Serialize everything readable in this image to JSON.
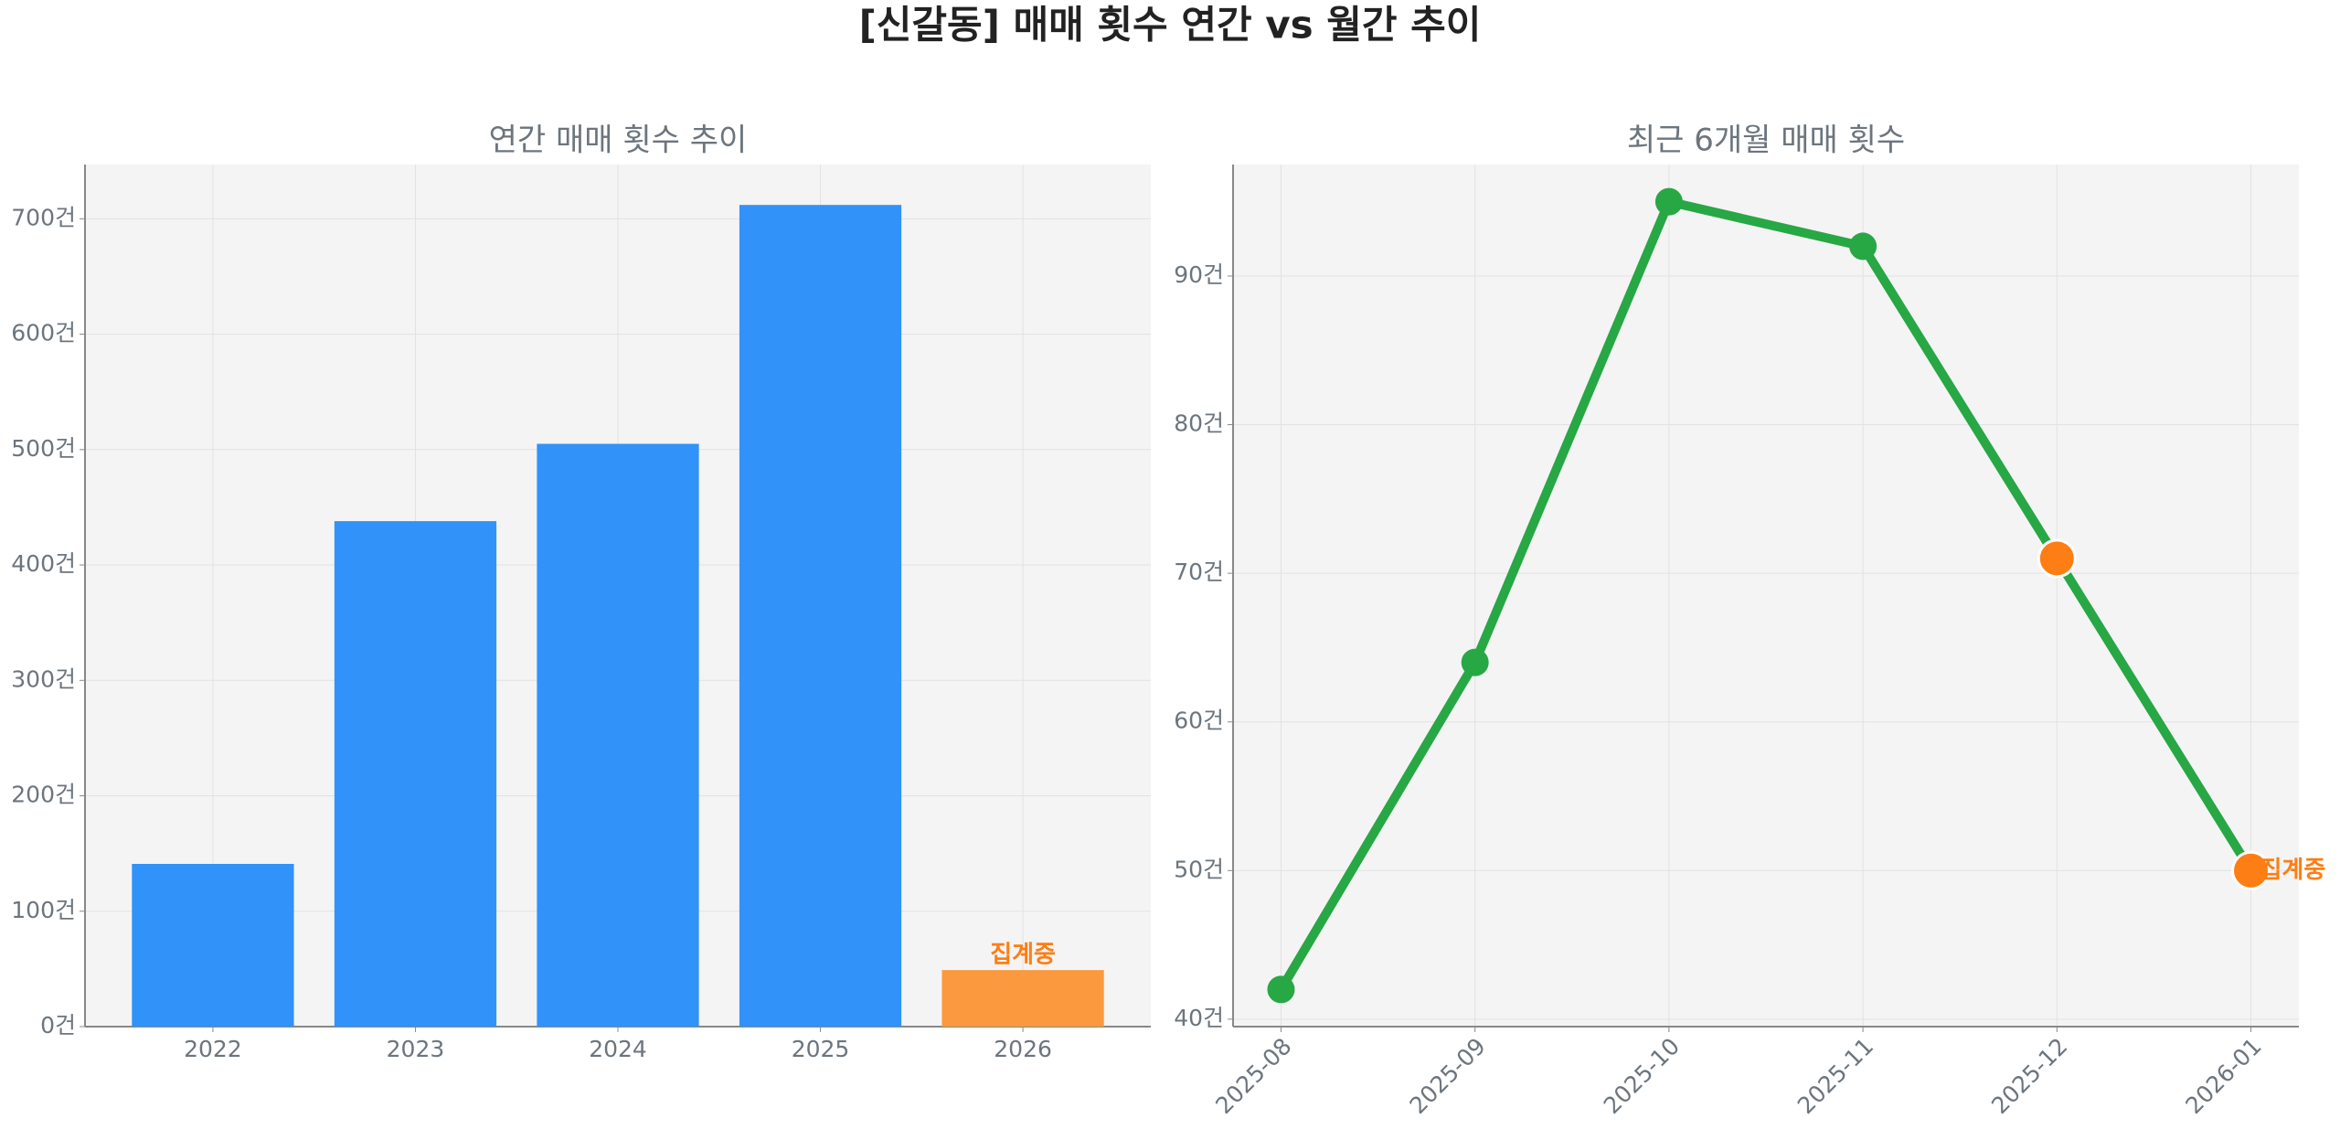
{
  "title": "[신갈동] 매매 횟수 연간 vs 월간 추이",
  "chart_data": [
    {
      "type": "bar",
      "title": "연간 매매 횟수 추이",
      "categories": [
        "2022",
        "2023",
        "2024",
        "2025",
        "2026"
      ],
      "values": [
        141,
        438,
        505,
        712,
        49
      ],
      "colors": [
        "#3192f9",
        "#3192f9",
        "#3192f9",
        "#3192f9",
        "#fb993f"
      ],
      "annotation": "집계중",
      "ylim": [
        0,
        747
      ],
      "yticks": [
        {
          "value": 0,
          "label": "0건"
        },
        {
          "value": 100,
          "label": "100건"
        },
        {
          "value": 200,
          "label": "200건"
        },
        {
          "value": 300,
          "label": "300건"
        },
        {
          "value": 400,
          "label": "400건"
        },
        {
          "value": 500,
          "label": "500건"
        },
        {
          "value": 600,
          "label": "600건"
        },
        {
          "value": 700,
          "label": "700건"
        }
      ],
      "grid": true
    },
    {
      "type": "line",
      "title": "최근 6개월 매매 횟수",
      "categories": [
        "2025-08",
        "2025-09",
        "2025-10",
        "2025-11",
        "2025-12",
        "2026-01"
      ],
      "series": [
        {
          "name": "매매 횟수",
          "color": "#28a745",
          "values": [
            42,
            64,
            95,
            92,
            71,
            50
          ],
          "point_colors": [
            "#28a745",
            "#28a745",
            "#28a745",
            "#28a745",
            "#fd7e14",
            "#fd7e14"
          ]
        }
      ],
      "annotation": "집계중",
      "ylim": [
        39.5,
        97.5
      ],
      "yticks": [
        {
          "value": 40,
          "label": "40건"
        },
        {
          "value": 50,
          "label": "50건"
        },
        {
          "value": 60,
          "label": "60건"
        },
        {
          "value": 70,
          "label": "70건"
        },
        {
          "value": 80,
          "label": "80건"
        },
        {
          "value": 90,
          "label": "90건"
        }
      ],
      "grid": true
    }
  ]
}
